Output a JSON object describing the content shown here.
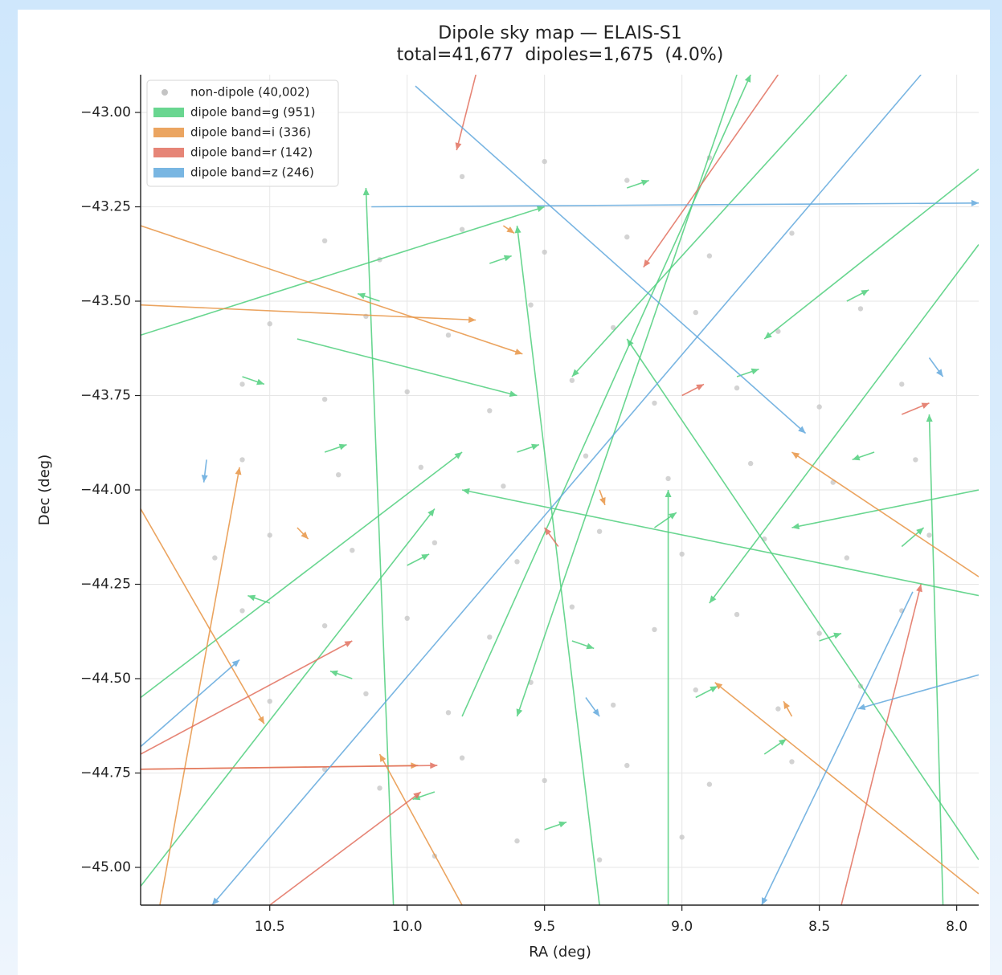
{
  "chart_data": {
    "type": "quiver",
    "title": "Dipole sky map — ELAIS-S1",
    "subtitle": "total=41,677  dipoles=1,675  (4.0%)",
    "x_label": "RA (deg)",
    "y_label": "Dec (deg)",
    "xlim": [
      10.97,
      7.92
    ],
    "ylim": [
      -45.1,
      -42.9
    ],
    "xticks": [
      10.5,
      {
        "value": 10,
        "label": "10.0"
      },
      9.5,
      {
        "value": 9,
        "label": "9.0"
      },
      8.5,
      {
        "value": 8,
        "label": "8.0"
      }
    ],
    "yticks": [
      {
        "value": -43,
        "label": "−43.00"
      },
      {
        "value": -43.25,
        "label": "−43.25"
      },
      {
        "value": -43.5,
        "label": "−43.50"
      },
      {
        "value": -43.75,
        "label": "−43.75"
      },
      {
        "value": -44,
        "label": "−44.00"
      },
      {
        "value": -44.25,
        "label": "−44.25"
      },
      {
        "value": -44.5,
        "label": "−44.50"
      },
      {
        "value": -44.75,
        "label": "−44.75"
      },
      {
        "value": -45,
        "label": "−45.00"
      }
    ],
    "grid": true,
    "legend": "upper left",
    "series": [
      {
        "name": "non-dipole (40,002)",
        "type": "scatter",
        "color": "#c4c4c4",
        "x": [
          8.9,
          9.2,
          9.5,
          9.8,
          8.6,
          8.9,
          9.2,
          9.5,
          9.8,
          10.1,
          10.3,
          8.35,
          8.65,
          8.95,
          9.25,
          9.55,
          9.85,
          10.15,
          10.5,
          8.2,
          8.5,
          8.8,
          9.1,
          9.4,
          9.7,
          10.0,
          10.3,
          10.6,
          8.15,
          8.45,
          8.75,
          9.05,
          9.35,
          9.65,
          9.95,
          10.25,
          10.6,
          8.1,
          8.4,
          8.7,
          9.0,
          9.3,
          9.6,
          9.9,
          10.2,
          10.5,
          10.7,
          8.2,
          8.5,
          8.8,
          9.1,
          9.4,
          9.7,
          10.0,
          10.3,
          10.6,
          8.35,
          8.65,
          8.95,
          9.25,
          9.55,
          9.85,
          10.15,
          10.5,
          8.6,
          8.9,
          9.2,
          9.5,
          9.8,
          10.1,
          10.3,
          9.0,
          9.3,
          9.6,
          9.9
        ],
        "y": [
          -43.12,
          -43.18,
          -43.13,
          -43.17,
          -43.32,
          -43.38,
          -43.33,
          -43.37,
          -43.31,
          -43.39,
          -43.34,
          -43.52,
          -43.58,
          -43.53,
          -43.57,
          -43.51,
          -43.59,
          -43.54,
          -43.56,
          -43.72,
          -43.78,
          -43.73,
          -43.77,
          -43.71,
          -43.79,
          -43.74,
          -43.76,
          -43.72,
          -43.92,
          -43.98,
          -43.93,
          -43.97,
          -43.91,
          -43.99,
          -43.94,
          -43.96,
          -43.92,
          -44.12,
          -44.18,
          -44.13,
          -44.17,
          -44.11,
          -44.19,
          -44.14,
          -44.16,
          -44.12,
          -44.18,
          -44.32,
          -44.38,
          -44.33,
          -44.37,
          -44.31,
          -44.39,
          -44.34,
          -44.36,
          -44.32,
          -44.52,
          -44.58,
          -44.53,
          -44.57,
          -44.51,
          -44.59,
          -44.54,
          -44.56,
          -44.72,
          -44.78,
          -44.73,
          -44.77,
          -44.71,
          -44.79,
          -44.74,
          -44.92,
          -44.98,
          -44.93,
          -44.97
        ]
      },
      {
        "name": "dipole band=g (951)",
        "type": "quiver",
        "color": "#4fcf7d",
        "x": [
          10.97,
          10.97,
          10.97,
          10.4,
          10.05,
          9.05,
          8.05,
          7.92,
          7.92,
          7.92,
          8.8,
          8.4,
          9.8,
          7.92,
          7.92,
          9.3,
          10.6,
          10.3,
          10.0,
          9.7,
          9.4,
          9.1,
          8.8,
          8.5,
          8.3,
          9.9,
          9.5,
          10.5,
          8.7,
          9.2,
          10.2,
          8.4,
          9.6,
          10.1,
          8.95,
          8.2
        ],
        "y": [
          -43.59,
          -44.55,
          -45.05,
          -43.6,
          -45.1,
          -45.1,
          -45.1,
          -43.35,
          -44.28,
          -44.98,
          -42.9,
          -42.9,
          -44.6,
          -44.0,
          -43.15,
          -45.1,
          -43.7,
          -43.9,
          -44.2,
          -43.4,
          -44.4,
          -44.1,
          -43.7,
          -44.4,
          -43.9,
          -44.8,
          -44.9,
          -44.3,
          -44.7,
          -43.2,
          -44.5,
          -43.5,
          -43.9,
          -43.5,
          -44.55,
          -44.15
        ],
        "x_end": [
          9.5,
          9.8,
          9.9,
          9.6,
          10.15,
          9.05,
          8.1,
          8.9,
          9.8,
          9.2,
          9.6,
          9.4,
          8.75,
          8.6,
          8.7,
          9.6,
          10.52,
          10.22,
          9.92,
          9.62,
          9.32,
          9.02,
          8.72,
          8.42,
          8.38,
          9.98,
          9.42,
          10.58,
          8.62,
          9.12,
          10.28,
          8.32,
          9.52,
          10.18,
          8.87,
          8.12
        ],
        "y_end": [
          -43.25,
          -43.9,
          -44.05,
          -43.75,
          -43.2,
          -44.0,
          -43.8,
          -44.3,
          -44.0,
          -43.6,
          -44.6,
          -43.7,
          -42.9,
          -44.1,
          -43.6,
          -43.3,
          -43.72,
          -43.88,
          -44.17,
          -43.38,
          -44.42,
          -44.06,
          -43.68,
          -44.38,
          -43.92,
          -44.82,
          -44.88,
          -44.28,
          -44.66,
          -43.18,
          -44.48,
          -43.47,
          -43.88,
          -43.48,
          -44.52,
          -44.1
        ]
      },
      {
        "name": "dipole band=i (336)",
        "type": "quiver",
        "color": "#e89545",
        "x": [
          10.97,
          10.97,
          10.97,
          10.97,
          7.92,
          10.9,
          7.92,
          9.8,
          9.3,
          10.4,
          8.6,
          9.65
        ],
        "y": [
          -43.3,
          -43.51,
          -44.74,
          -44.05,
          -45.07,
          -45.1,
          -44.23,
          -45.1,
          -44.0,
          -44.1,
          -44.6,
          -43.3
        ],
        "x_end": [
          9.58,
          9.75,
          9.96,
          10.52,
          8.88,
          10.61,
          8.6,
          10.1,
          9.28,
          10.36,
          8.63,
          9.61
        ],
        "y_end": [
          -43.64,
          -43.55,
          -44.73,
          -44.62,
          -44.51,
          -43.94,
          -43.9,
          -44.7,
          -44.04,
          -44.13,
          -44.56,
          -43.32
        ]
      },
      {
        "name": "dipole band=r (142)",
        "type": "quiver",
        "color": "#e2705f",
        "x": [
          10.97,
          10.97,
          8.65,
          8.42,
          9.75,
          10.5,
          9.0,
          8.2,
          9.45
        ],
        "y": [
          -44.7,
          -44.74,
          -42.9,
          -45.1,
          -42.9,
          -45.1,
          -43.75,
          -43.8,
          -44.15
        ],
        "x_end": [
          10.2,
          9.89,
          9.14,
          8.13,
          9.82,
          9.95,
          8.92,
          8.1,
          9.5
        ],
        "y_end": [
          -44.4,
          -44.73,
          -43.41,
          -44.25,
          -43.1,
          -44.8,
          -43.72,
          -43.77,
          -44.1
        ]
      },
      {
        "name": "dipole band=z (246)",
        "type": "quiver",
        "color": "#62a9dd",
        "x": [
          10.13,
          8.13,
          9.97,
          10.97,
          7.92,
          8.16,
          10.73,
          8.1,
          9.35
        ],
        "y": [
          -43.25,
          -42.9,
          -42.93,
          -44.68,
          -44.49,
          -44.27,
          -43.92,
          -43.65,
          -44.55
        ],
        "x_end": [
          7.92,
          10.71,
          8.55,
          10.61,
          8.36,
          8.71,
          10.74,
          8.05,
          9.3
        ],
        "y_end": [
          -43.24,
          -45.1,
          -43.85,
          -44.45,
          -44.58,
          -45.1,
          -43.98,
          -43.7,
          -44.6
        ]
      }
    ]
  }
}
